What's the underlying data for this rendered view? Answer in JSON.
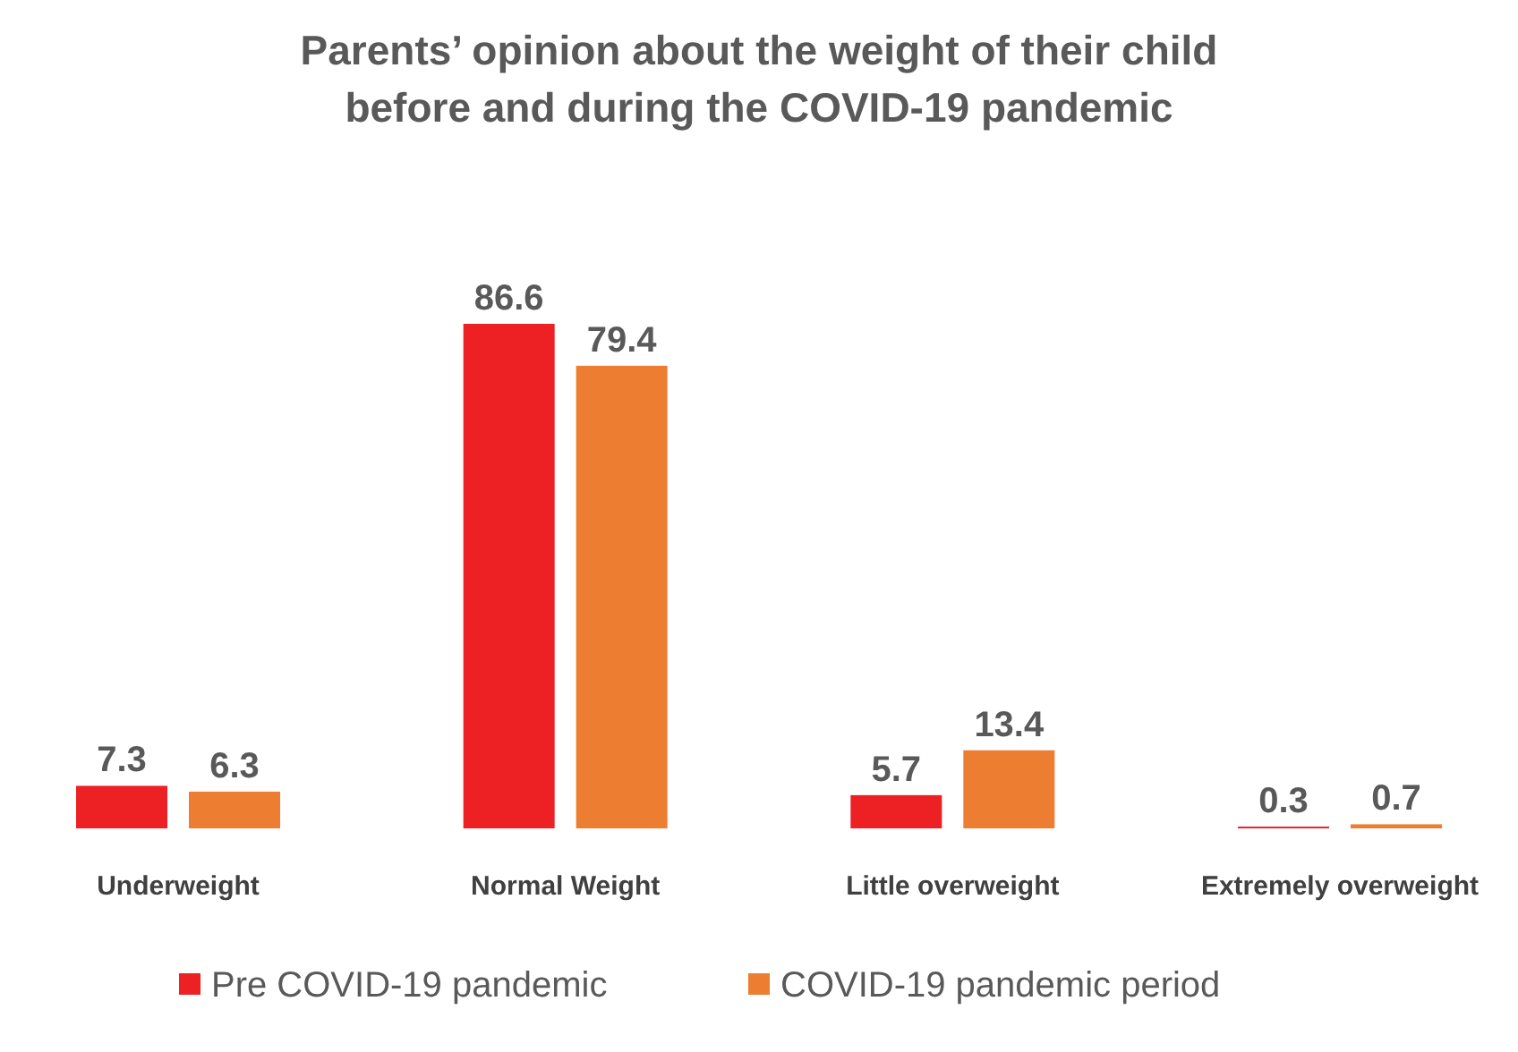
{
  "chart_data": {
    "type": "bar",
    "title": "Parents’ opinion about the weight of their child\nbefore and during the COVID-19 pandemic",
    "categories": [
      "Underweight",
      "Normal Weight",
      "Little overweight",
      "Extremely overweight"
    ],
    "series": [
      {
        "name": "Pre COVID-19 pandemic",
        "color": "#ed2024",
        "values": [
          7.3,
          86.6,
          5.7,
          0.3
        ]
      },
      {
        "name": "COVID-19 pandemic period",
        "color": "#ed7d31",
        "values": [
          6.3,
          79.4,
          13.4,
          0.7
        ]
      }
    ],
    "relative": false,
    "data_labels": true,
    "legend": "bottom"
  }
}
